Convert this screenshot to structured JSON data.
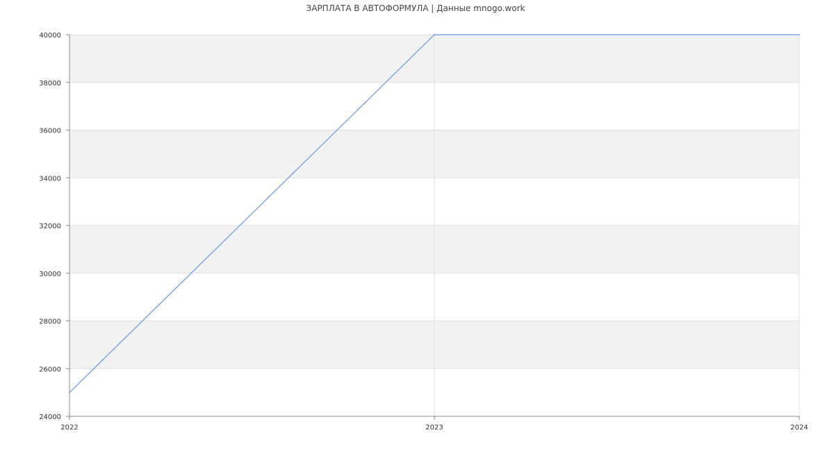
{
  "chart_data": {
    "type": "line",
    "title": "ЗАРПЛАТА В АВТОФОРМУЛА | Данные mnogo.work",
    "x": [
      "2022",
      "2023",
      "2024"
    ],
    "series": [
      {
        "values": [
          25000,
          40000,
          40000
        ]
      }
    ],
    "ylim": [
      24000,
      40000
    ],
    "yticks": [
      "24000",
      "26000",
      "28000",
      "30000",
      "32000",
      "34000",
      "36000",
      "38000",
      "40000"
    ],
    "xticks": [
      "2022",
      "2023",
      "2024"
    ],
    "grid": true,
    "legend": "none",
    "colors": {
      "line": "#6495ed",
      "band": "#f2f2f2",
      "grid": "#e0e0e0",
      "axis": "#888888"
    }
  }
}
